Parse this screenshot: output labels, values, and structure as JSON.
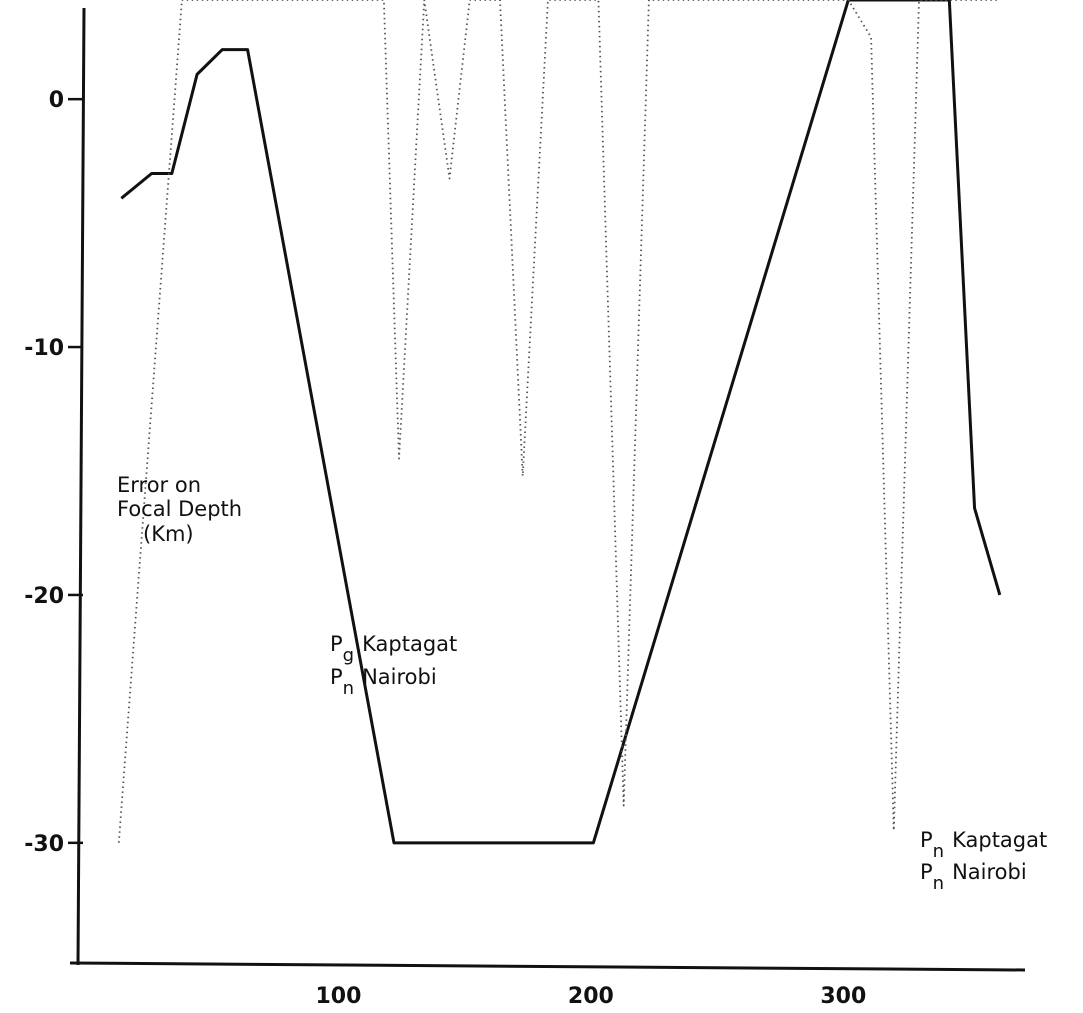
{
  "chart_data": {
    "type": "line",
    "title": "",
    "xlabel": "",
    "ylabel": "",
    "xlim": [
      0,
      370
    ],
    "ylim": [
      -34,
      4
    ],
    "x_ticks": [
      100,
      200,
      300
    ],
    "y_ticks": [
      0,
      -10,
      -20,
      -30
    ],
    "grid": false,
    "series": [
      {
        "style": "solid",
        "color": "#111111",
        "points": [
          [
            14,
            -4
          ],
          [
            26,
            -3
          ],
          [
            34,
            -3
          ],
          [
            44,
            1
          ],
          [
            54,
            2
          ],
          [
            64,
            2
          ],
          [
            122,
            -30
          ],
          [
            201,
            -30
          ],
          [
            302,
            4
          ],
          [
            342,
            4
          ],
          [
            352,
            -16.5
          ],
          [
            362,
            -20
          ]
        ]
      },
      {
        "style": "dotted",
        "color": "#555555",
        "points": [
          [
            13,
            -30
          ],
          [
            38,
            4
          ],
          [
            118,
            4
          ],
          [
            124,
            -14.5
          ],
          [
            134,
            4
          ],
          [
            144,
            -3.2
          ],
          [
            152,
            4
          ],
          [
            164,
            4
          ],
          [
            173,
            -15.2
          ],
          [
            183,
            4
          ],
          [
            203,
            4
          ],
          [
            213,
            -28.5
          ],
          [
            223,
            4
          ],
          [
            302,
            4
          ],
          [
            311,
            2.5
          ],
          [
            320,
            -29.5
          ],
          [
            330,
            4
          ],
          [
            362,
            4
          ]
        ]
      }
    ],
    "annotations": [
      {
        "lines": [
          "Error on",
          "Focal Depth",
          "(Km)"
        ]
      },
      {
        "lines": [
          {
            "base": "P",
            "sub": "g",
            "text": "Kaptagat"
          },
          {
            "base": "P",
            "sub": "n",
            "text": "Nairobi"
          }
        ]
      },
      {
        "lines": [
          {
            "base": "P",
            "sub": "n",
            "text": "Kaptagat"
          },
          {
            "base": "P",
            "sub": "n",
            "text": "Nairobi"
          }
        ]
      }
    ]
  }
}
